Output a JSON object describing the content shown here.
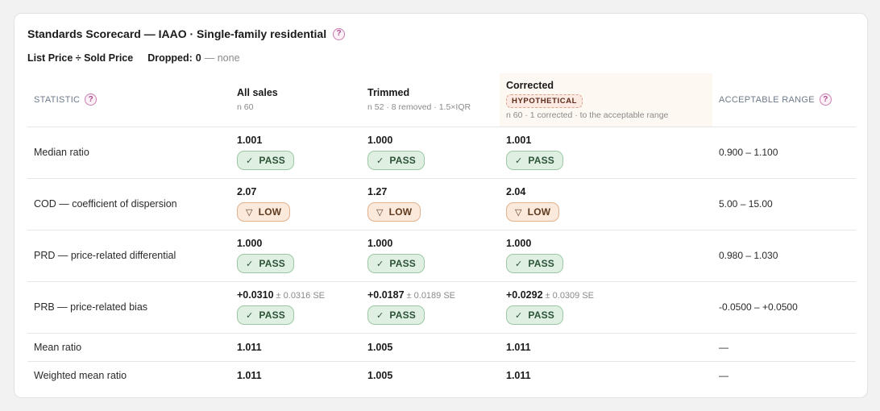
{
  "card": {
    "title": "Standards Scorecard — IAAO · Single-family residential",
    "help_glyph": "?",
    "metric": "List Price ÷ Sold Price",
    "dropped_label": "Dropped:",
    "dropped_value": "0",
    "dropped_note": "— none"
  },
  "headers": {
    "statistic": "STATISTIC",
    "all_sales": {
      "title": "All sales",
      "meta": "n 60"
    },
    "trimmed": {
      "title": "Trimmed",
      "meta": "n 52 · 8 removed · 1.5×IQR"
    },
    "corrected": {
      "title": "Corrected",
      "tag": "HYPOTHETICAL",
      "meta": "n 60 · 1 corrected · to the acceptable range"
    },
    "range": "ACCEPTABLE RANGE"
  },
  "rows": [
    {
      "name": "Median ratio",
      "all": {
        "value": "1.001",
        "badge": "PASS",
        "status": "pass"
      },
      "trimmed": {
        "value": "1.000",
        "badge": "PASS",
        "status": "pass"
      },
      "corrected": {
        "value": "1.001",
        "badge": "PASS",
        "status": "pass"
      },
      "range": "0.900 – 1.100"
    },
    {
      "name": "COD — coefficient of dispersion",
      "all": {
        "value": "2.07",
        "badge": "LOW",
        "status": "low"
      },
      "trimmed": {
        "value": "1.27",
        "badge": "LOW",
        "status": "low"
      },
      "corrected": {
        "value": "2.04",
        "badge": "LOW",
        "status": "low"
      },
      "range": "5.00 – 15.00"
    },
    {
      "name": "PRD — price-related differential",
      "all": {
        "value": "1.000",
        "badge": "PASS",
        "status": "pass"
      },
      "trimmed": {
        "value": "1.000",
        "badge": "PASS",
        "status": "pass"
      },
      "corrected": {
        "value": "1.000",
        "badge": "PASS",
        "status": "pass"
      },
      "range": "0.980 – 1.030"
    },
    {
      "name": "PRB — price-related bias",
      "all": {
        "value": "+0.0310",
        "se": "± 0.0316 SE",
        "badge": "PASS",
        "status": "pass"
      },
      "trimmed": {
        "value": "+0.0187",
        "se": "± 0.0189 SE",
        "badge": "PASS",
        "status": "pass"
      },
      "corrected": {
        "value": "+0.0292",
        "se": "± 0.0309 SE",
        "badge": "PASS",
        "status": "pass"
      },
      "range": "-0.0500 – +0.0500"
    },
    {
      "name": "Mean ratio",
      "all": {
        "value": "1.011"
      },
      "trimmed": {
        "value": "1.005"
      },
      "corrected": {
        "value": "1.011"
      },
      "range": "—"
    },
    {
      "name": "Weighted mean ratio",
      "all": {
        "value": "1.011"
      },
      "trimmed": {
        "value": "1.005"
      },
      "corrected": {
        "value": "1.011"
      },
      "range": "—"
    }
  ],
  "icons": {
    "pass": "check-icon",
    "low": "triangle-down-icon"
  },
  "glyphs": {
    "pass": "✓",
    "low": "▽"
  },
  "colors": {
    "pass_bg": "#dff0e3",
    "low_bg": "#fbe9dc",
    "hypothetical_bg": "#fbe9e2",
    "help_accent": "#b24b93"
  }
}
